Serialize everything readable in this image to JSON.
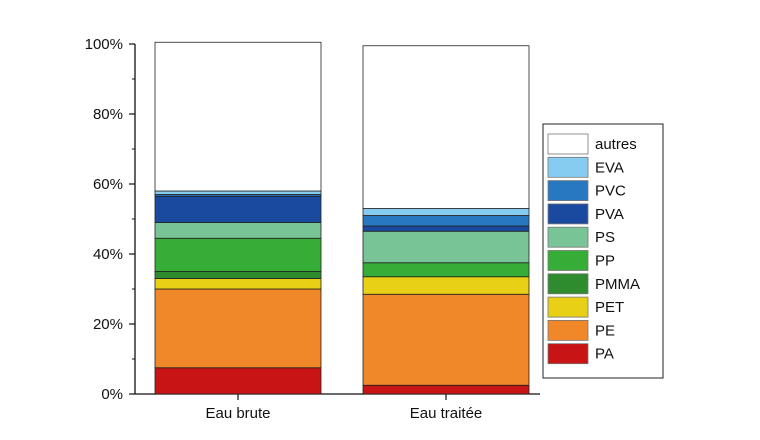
{
  "chart_data": {
    "type": "bar",
    "stacked": true,
    "normalized": true,
    "categories": [
      "Eau brute",
      "Eau traitée"
    ],
    "series": [
      {
        "name": "PA",
        "color": "#c81414",
        "values": [
          7.5,
          2.5
        ]
      },
      {
        "name": "PE",
        "color": "#f0882a",
        "values": [
          22.5,
          26
        ]
      },
      {
        "name": "PET",
        "color": "#e8d016",
        "values": [
          3,
          5
        ]
      },
      {
        "name": "PMMA",
        "color": "#2e8b2e",
        "values": [
          2,
          0
        ]
      },
      {
        "name": "PP",
        "color": "#36ad36",
        "values": [
          9.5,
          4
        ]
      },
      {
        "name": "PS",
        "color": "#78c496",
        "values": [
          4.5,
          9
        ]
      },
      {
        "name": "PVA",
        "color": "#1a4aa0",
        "values": [
          7.5,
          1.5
        ]
      },
      {
        "name": "PVC",
        "color": "#2878c0",
        "values": [
          0.5,
          3
        ]
      },
      {
        "name": "EVA",
        "color": "#86ccf0",
        "values": [
          1,
          2
        ]
      },
      {
        "name": "autres",
        "color": "#ffffff",
        "values": [
          42.5,
          46.5
        ]
      }
    ],
    "yticks": [
      "0%",
      "20%",
      "40%",
      "60%",
      "80%",
      "100%"
    ],
    "ylim": [
      0,
      100
    ],
    "grid": false,
    "legend_position": "right",
    "legend_order": [
      "autres",
      "EVA",
      "PVC",
      "PVA",
      "PS",
      "PP",
      "PMMA",
      "PET",
      "PE",
      "PA"
    ],
    "title": "",
    "xlabel": "",
    "ylabel": ""
  }
}
